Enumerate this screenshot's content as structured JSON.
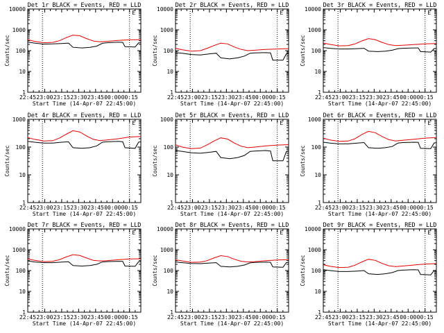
{
  "colors": {
    "events": "#000000",
    "lld": "#e00000",
    "background": "#ffffff"
  },
  "chart_data": [
    {
      "type": "line",
      "title": "Det 1r BLACK = Events, RED = LLD",
      "xlabel": "Start Time (14-Apr-07 22:45:00)",
      "ylabel": "Counts/sec",
      "yscale": "log",
      "ylim": [
        1,
        10000
      ],
      "xticks": [
        "22:45",
        "23:00",
        "23:15",
        "23:30",
        "23:45",
        "00:00",
        "00:15"
      ],
      "xlim_minutes": [
        0,
        100
      ],
      "vlines_minutes": [
        13,
        90
      ],
      "marker": "E",
      "series": [
        {
          "name": "Events",
          "color": "#000000",
          "x": [
            0,
            6,
            14,
            22,
            30,
            36,
            40,
            48,
            55,
            61,
            66,
            70,
            80,
            84,
            86,
            95,
            98,
            100
          ],
          "y": [
            260,
            230,
            205,
            210,
            220,
            230,
            145,
            135,
            145,
            165,
            225,
            240,
            255,
            250,
            155,
            150,
            235,
            240
          ]
        },
        {
          "name": "LLD",
          "color": "#e00000",
          "x": [
            0,
            6,
            14,
            22,
            28,
            34,
            40,
            46,
            52,
            58,
            64,
            70,
            80,
            90,
            100
          ],
          "y": [
            340,
            280,
            240,
            250,
            300,
            420,
            560,
            520,
            380,
            290,
            265,
            280,
            310,
            330,
            340
          ]
        }
      ]
    },
    {
      "type": "line",
      "title": "Det 2r BLACK = Events, RED = LLD",
      "xlabel": "Start Time (14-Apr-07 22:45:00)",
      "ylabel": "Counts/sec",
      "yscale": "log",
      "ylim": [
        1,
        10000
      ],
      "xticks": [
        "22:45",
        "23:00",
        "23:15",
        "23:30",
        "23:45",
        "00:00",
        "00:15"
      ],
      "xlim_minutes": [
        0,
        100
      ],
      "vlines_minutes": [
        13,
        90
      ],
      "marker": "E",
      "series": [
        {
          "name": "Events",
          "color": "#000000",
          "x": [
            0,
            6,
            14,
            22,
            30,
            36,
            40,
            48,
            55,
            61,
            66,
            70,
            80,
            84,
            86,
            95,
            98,
            100
          ],
          "y": [
            80,
            75,
            65,
            62,
            70,
            75,
            45,
            40,
            45,
            55,
            75,
            78,
            80,
            78,
            35,
            35,
            70,
            75
          ]
        },
        {
          "name": "LLD",
          "color": "#e00000",
          "x": [
            0,
            6,
            14,
            22,
            28,
            34,
            40,
            46,
            52,
            58,
            64,
            70,
            80,
            90,
            100
          ],
          "y": [
            130,
            110,
            95,
            100,
            130,
            175,
            230,
            210,
            150,
            115,
            100,
            105,
            115,
            120,
            125
          ]
        }
      ]
    },
    {
      "type": "line",
      "title": "Det 3r BLACK = Events, RED = LLD",
      "xlabel": "Start Time (14-Apr-07 22:45:00)",
      "ylabel": "Counts/sec",
      "yscale": "log",
      "ylim": [
        1,
        10000
      ],
      "xticks": [
        "22:45",
        "23:00",
        "23:15",
        "23:30",
        "23:45",
        "00:00",
        "00:15"
      ],
      "xlim_minutes": [
        0,
        100
      ],
      "vlines_minutes": [
        13,
        90
      ],
      "marker": "E",
      "series": [
        {
          "name": "Events",
          "color": "#000000",
          "x": [
            0,
            6,
            14,
            22,
            30,
            36,
            40,
            48,
            55,
            61,
            66,
            70,
            80,
            84,
            86,
            95,
            98,
            100
          ],
          "y": [
            140,
            130,
            120,
            120,
            125,
            130,
            95,
            90,
            95,
            105,
            125,
            130,
            135,
            135,
            90,
            85,
            125,
            130
          ]
        },
        {
          "name": "LLD",
          "color": "#e00000",
          "x": [
            0,
            6,
            14,
            22,
            28,
            34,
            40,
            46,
            52,
            58,
            64,
            70,
            80,
            90,
            100
          ],
          "y": [
            230,
            200,
            170,
            175,
            210,
            290,
            380,
            340,
            250,
            195,
            175,
            180,
            195,
            210,
            220
          ]
        }
      ]
    },
    {
      "type": "line",
      "title": "Det 4r BLACK = Events, RED = LLD",
      "xlabel": "Start Time (14-Apr-07 22:45:00)",
      "ylabel": "Counts/sec",
      "yscale": "log",
      "ylim": [
        1,
        1000
      ],
      "xticks": [
        "22:45",
        "23:00",
        "23:15",
        "23:30",
        "23:45",
        "00:00",
        "00:15"
      ],
      "xlim_minutes": [
        0,
        100
      ],
      "vlines_minutes": [
        13,
        90
      ],
      "marker": "E",
      "series": [
        {
          "name": "Events",
          "color": "#000000",
          "x": [
            0,
            6,
            14,
            22,
            30,
            36,
            40,
            48,
            55,
            61,
            66,
            70,
            80,
            84,
            86,
            95,
            98,
            100
          ],
          "y": [
            160,
            150,
            140,
            140,
            150,
            155,
            95,
            90,
            95,
            110,
            150,
            155,
            160,
            155,
            95,
            90,
            150,
            155
          ]
        },
        {
          "name": "LLD",
          "color": "#e00000",
          "x": [
            0,
            6,
            14,
            22,
            28,
            34,
            40,
            46,
            52,
            58,
            64,
            70,
            80,
            90,
            100
          ],
          "y": [
            220,
            190,
            165,
            170,
            210,
            290,
            390,
            350,
            250,
            190,
            170,
            180,
            200,
            230,
            240
          ]
        }
      ]
    },
    {
      "type": "line",
      "title": "Det 5r BLACK = Events, RED = LLD",
      "xlabel": "Start Time (14-Apr-07 22:45:00)",
      "ylabel": "Counts/sec",
      "yscale": "log",
      "ylim": [
        1,
        1000
      ],
      "xticks": [
        "22:45",
        "23:00",
        "23:15",
        "23:30",
        "23:45",
        "00:00",
        "00:15"
      ],
      "xlim_minutes": [
        0,
        100
      ],
      "vlines_minutes": [
        13,
        90
      ],
      "marker": "E",
      "series": [
        {
          "name": "Events",
          "color": "#000000",
          "x": [
            0,
            6,
            14,
            22,
            30,
            36,
            40,
            48,
            55,
            61,
            66,
            70,
            80,
            84,
            86,
            95,
            98,
            100
          ],
          "y": [
            75,
            70,
            62,
            60,
            65,
            70,
            42,
            38,
            42,
            50,
            70,
            72,
            75,
            72,
            32,
            32,
            68,
            72
          ]
        },
        {
          "name": "LLD",
          "color": "#e00000",
          "x": [
            0,
            6,
            14,
            22,
            28,
            34,
            40,
            46,
            52,
            58,
            64,
            70,
            80,
            90,
            100
          ],
          "y": [
            120,
            100,
            88,
            92,
            120,
            165,
            215,
            195,
            140,
            108,
            95,
            100,
            110,
            118,
            122
          ]
        }
      ]
    },
    {
      "type": "line",
      "title": "Det 6r BLACK = Events, RED = LLD",
      "xlabel": "Start Time (14-Apr-07 22:45:00)",
      "ylabel": "Counts/sec",
      "yscale": "log",
      "ylim": [
        1,
        1000
      ],
      "xticks": [
        "22:45",
        "23:00",
        "23:15",
        "23:30",
        "23:45",
        "00:00",
        "00:15"
      ],
      "xlim_minutes": [
        0,
        100
      ],
      "vlines_minutes": [
        13,
        90
      ],
      "marker": "E",
      "series": [
        {
          "name": "Events",
          "color": "#000000",
          "x": [
            0,
            6,
            14,
            22,
            30,
            36,
            40,
            48,
            55,
            61,
            66,
            70,
            80,
            84,
            86,
            95,
            98,
            100
          ],
          "y": [
            150,
            140,
            130,
            130,
            140,
            145,
            95,
            90,
            95,
            105,
            140,
            145,
            150,
            148,
            90,
            88,
            140,
            145
          ]
        },
        {
          "name": "LLD",
          "color": "#e00000",
          "x": [
            0,
            6,
            14,
            22,
            28,
            34,
            40,
            46,
            52,
            58,
            64,
            70,
            80,
            90,
            100
          ],
          "y": [
            210,
            180,
            160,
            165,
            200,
            280,
            370,
            330,
            240,
            185,
            165,
            175,
            190,
            210,
            220
          ]
        }
      ]
    },
    {
      "type": "line",
      "title": "Det 7r BLACK = Events, RED = LLD",
      "xlabel": "Start Time (14-Apr-07 22:45:00)",
      "ylabel": "Counts/sec",
      "yscale": "log",
      "ylim": [
        1,
        10000
      ],
      "xticks": [
        "22:45",
        "23:00",
        "23:15",
        "23:30",
        "23:45",
        "00:00",
        "00:15"
      ],
      "xlim_minutes": [
        0,
        100
      ],
      "vlines_minutes": [
        13,
        90
      ],
      "marker": "E",
      "series": [
        {
          "name": "Events",
          "color": "#000000",
          "x": [
            0,
            6,
            14,
            22,
            30,
            36,
            40,
            48,
            55,
            61,
            66,
            70,
            80,
            84,
            86,
            95,
            98,
            100
          ],
          "y": [
            290,
            260,
            240,
            240,
            255,
            265,
            175,
            165,
            175,
            200,
            260,
            270,
            280,
            275,
            165,
            160,
            265,
            270
          ]
        },
        {
          "name": "LLD",
          "color": "#e00000",
          "x": [
            0,
            6,
            14,
            22,
            28,
            34,
            40,
            46,
            52,
            58,
            64,
            70,
            80,
            90,
            100
          ],
          "y": [
            360,
            310,
            270,
            280,
            330,
            450,
            580,
            530,
            400,
            310,
            290,
            300,
            330,
            360,
            370
          ]
        }
      ]
    },
    {
      "type": "line",
      "title": "Det 8r BLACK = Events, RED = LLD",
      "xlabel": "Start Time (14-Apr-07 22:45:00)",
      "ylabel": "Counts/sec",
      "yscale": "log",
      "ylim": [
        1,
        10000
      ],
      "xticks": [
        "22:45",
        "23:00",
        "23:15",
        "23:30",
        "23:45",
        "00:00",
        "00:15"
      ],
      "xlim_minutes": [
        0,
        100
      ],
      "vlines_minutes": [
        13,
        90
      ],
      "marker": "E",
      "series": [
        {
          "name": "Events",
          "color": "#000000",
          "x": [
            0,
            6,
            14,
            22,
            30,
            36,
            40,
            48,
            55,
            61,
            66,
            70,
            80,
            84,
            86,
            95,
            98,
            100
          ],
          "y": [
            260,
            240,
            220,
            215,
            230,
            240,
            160,
            150,
            160,
            185,
            235,
            245,
            255,
            250,
            150,
            145,
            240,
            245
          ]
        },
        {
          "name": "LLD",
          "color": "#e00000",
          "x": [
            0,
            6,
            14,
            22,
            28,
            34,
            40,
            46,
            52,
            58,
            64,
            70,
            80,
            90,
            100
          ],
          "y": [
            330,
            290,
            250,
            255,
            300,
            400,
            520,
            470,
            350,
            280,
            260,
            270,
            300,
            320,
            330
          ]
        }
      ]
    },
    {
      "type": "line",
      "title": "Det 9r BLACK = Events, RED = LLD",
      "xlabel": "Start Time (14-Apr-07 22:45:00)",
      "ylabel": "Counts/sec",
      "yscale": "log",
      "ylim": [
        1,
        10000
      ],
      "xticks": [
        "22:45",
        "23:00",
        "23:15",
        "23:30",
        "23:45",
        "00:00",
        "00:15"
      ],
      "xlim_minutes": [
        0,
        100
      ],
      "vlines_minutes": [
        13,
        90
      ],
      "marker": "E",
      "series": [
        {
          "name": "Events",
          "color": "#000000",
          "x": [
            0,
            6,
            14,
            22,
            30,
            36,
            40,
            48,
            55,
            61,
            66,
            70,
            80,
            84,
            86,
            95,
            98,
            100
          ],
          "y": [
            110,
            100,
            90,
            90,
            95,
            100,
            70,
            65,
            70,
            80,
            100,
            105,
            110,
            108,
            65,
            62,
            100,
            105
          ]
        },
        {
          "name": "LLD",
          "color": "#e00000",
          "x": [
            0,
            6,
            14,
            22,
            28,
            34,
            40,
            46,
            52,
            58,
            64,
            70,
            80,
            90,
            100
          ],
          "y": [
            190,
            160,
            140,
            145,
            180,
            260,
            350,
            310,
            220,
            170,
            155,
            165,
            185,
            205,
            215
          ]
        }
      ]
    }
  ]
}
